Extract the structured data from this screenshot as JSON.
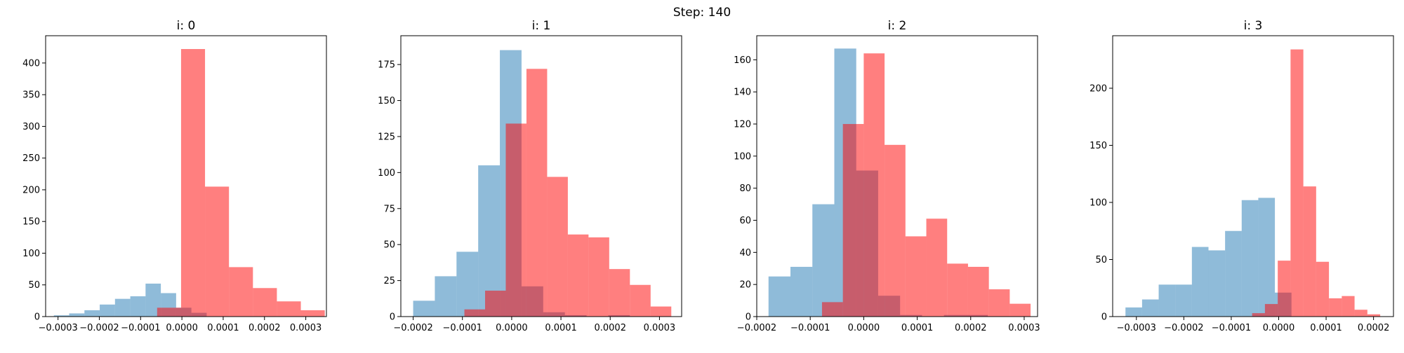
{
  "figure": {
    "suptitle": "Step: 140"
  },
  "colors": {
    "series_blue": "#1f77b4",
    "series_red": "#ff0000",
    "axes": "#000000"
  },
  "chart_data": [
    {
      "type": "bar",
      "title": "i: 0",
      "xlim": [
        -0.00033,
        0.00035
      ],
      "ylim": [
        0,
        443
      ],
      "xticks": [
        -0.0003,
        -0.0002,
        -0.0001,
        0,
        0.0001,
        0.0002,
        0.0003
      ],
      "xtick_labels": [
        "−0.0003",
        "−0.0002",
        "−0.0001",
        "0.0000",
        "0.0001",
        "0.0002",
        "0.0003"
      ],
      "yticks": [
        0,
        50,
        100,
        150,
        200,
        250,
        300,
        350,
        400
      ],
      "ytick_labels": [
        "0",
        "50",
        "100",
        "150",
        "200",
        "250",
        "300",
        "350",
        "400"
      ],
      "series": [
        {
          "color": "#1f77b4",
          "alpha": 0.5,
          "bins": [
            -0.00031,
            -0.000273,
            -0.000236,
            -0.000199,
            -0.000162,
            -0.000125,
            -8.8e-05,
            -5.1e-05,
            -1.4e-05,
            2.3e-05,
            6e-05
          ],
          "values": [
            2,
            5,
            10,
            19,
            28,
            32,
            52,
            37,
            14,
            6
          ]
        },
        {
          "color": "#ff0000",
          "alpha": 0.5,
          "bins": [
            -6e-05,
            -2e-06,
            5.6e-05,
            0.000114,
            0.000172,
            0.00023,
            0.000288,
            0.000346
          ],
          "values": [
            14,
            422,
            205,
            78,
            45,
            24,
            10
          ]
        }
      ]
    },
    {
      "type": "bar",
      "title": "i: 1",
      "xlim": [
        -0.000225,
        0.000345
      ],
      "ylim": [
        0,
        195
      ],
      "xticks": [
        -0.0002,
        -0.0001,
        0,
        0.0001,
        0.0002,
        0.0003
      ],
      "xtick_labels": [
        "−0.0002",
        "−0.0001",
        "0.0000",
        "0.0001",
        "0.0002",
        "0.0003"
      ],
      "yticks": [
        0,
        25,
        50,
        75,
        100,
        125,
        150,
        175
      ],
      "ytick_labels": [
        "0",
        "25",
        "50",
        "75",
        "100",
        "125",
        "150",
        "175"
      ],
      "series": [
        {
          "color": "#1f77b4",
          "alpha": 0.5,
          "bins": [
            -0.0002,
            -0.000156,
            -0.000112,
            -6.8e-05,
            -2.4e-05,
            2e-05,
            6.4e-05,
            0.000108,
            0.000152,
            0.000196,
            0.00024
          ],
          "values": [
            11,
            28,
            45,
            105,
            185,
            21,
            3,
            1,
            0,
            1
          ]
        },
        {
          "color": "#ff0000",
          "alpha": 0.5,
          "bins": [
            -9.6e-05,
            -5.4e-05,
            -1.2e-05,
            3e-05,
            7.2e-05,
            0.000114,
            0.000156,
            0.000198,
            0.00024,
            0.000282,
            0.000324
          ],
          "values": [
            5,
            18,
            134,
            172,
            97,
            57,
            55,
            33,
            22,
            7
          ]
        }
      ]
    },
    {
      "type": "bar",
      "title": "i: 2",
      "xlim": [
        -0.0002,
        0.000325
      ],
      "ylim": [
        0,
        175
      ],
      "xticks": [
        -0.0002,
        -0.0001,
        0,
        0.0001,
        0.0002,
        0.0003
      ],
      "xtick_labels": [
        "−0.0002",
        "−0.0001",
        "0.0000",
        "0.0001",
        "0.0002",
        "0.0003"
      ],
      "yticks": [
        0,
        20,
        40,
        60,
        80,
        100,
        120,
        140,
        160
      ],
      "ytick_labels": [
        "0",
        "20",
        "40",
        "60",
        "80",
        "100",
        "120",
        "140",
        "160"
      ],
      "series": [
        {
          "color": "#1f77b4",
          "alpha": 0.5,
          "bins": [
            -0.000178,
            -0.000137,
            -9.6e-05,
            -5.5e-05,
            -1.4e-05,
            2.7e-05,
            6.8e-05,
            0.000109,
            0.00015,
            0.000191,
            0.000232
          ],
          "values": [
            25,
            31,
            70,
            167,
            91,
            13,
            1,
            0,
            1,
            1
          ]
        },
        {
          "color": "#ff0000",
          "alpha": 0.5,
          "bins": [
            -7.8e-05,
            -3.9e-05,
            0,
            3.9e-05,
            7.8e-05,
            0.000117,
            0.000156,
            0.000195,
            0.000234,
            0.000273,
            0.000312
          ],
          "values": [
            9,
            120,
            164,
            107,
            50,
            61,
            33,
            31,
            17,
            8
          ]
        }
      ]
    },
    {
      "type": "bar",
      "title": "i: 3",
      "xlim": [
        -0.00035,
        0.000242
      ],
      "ylim": [
        0,
        246
      ],
      "xticks": [
        -0.0003,
        -0.0002,
        -0.0001,
        0,
        0.0001,
        0.0002
      ],
      "xtick_labels": [
        "−0.0003",
        "−0.0002",
        "−0.0001",
        "0.0000",
        "0.0001",
        "0.0002"
      ],
      "yticks": [
        0,
        50,
        100,
        150,
        200
      ],
      "ytick_labels": [
        "0",
        "50",
        "100",
        "150",
        "200"
      ],
      "series": [
        {
          "color": "#1f77b4",
          "alpha": 0.5,
          "bins": [
            -0.000323,
            -0.000288,
            -0.000253,
            -0.000218,
            -0.000183,
            -0.000148,
            -0.000113,
            -7.8e-05,
            -4.3e-05,
            -8e-06,
            2.7e-05
          ],
          "values": [
            8,
            15,
            28,
            28,
            61,
            58,
            75,
            102,
            104,
            21
          ]
        },
        {
          "color": "#ff0000",
          "alpha": 0.5,
          "bins": [
            -5.6e-05,
            -2.9e-05,
            -2e-06,
            2.5e-05,
            5.2e-05,
            7.9e-05,
            0.000106,
            0.000133,
            0.00016,
            0.000187,
            0.000214
          ],
          "values": [
            3,
            11,
            49,
            234,
            114,
            48,
            16,
            18,
            6,
            2
          ]
        }
      ]
    }
  ]
}
